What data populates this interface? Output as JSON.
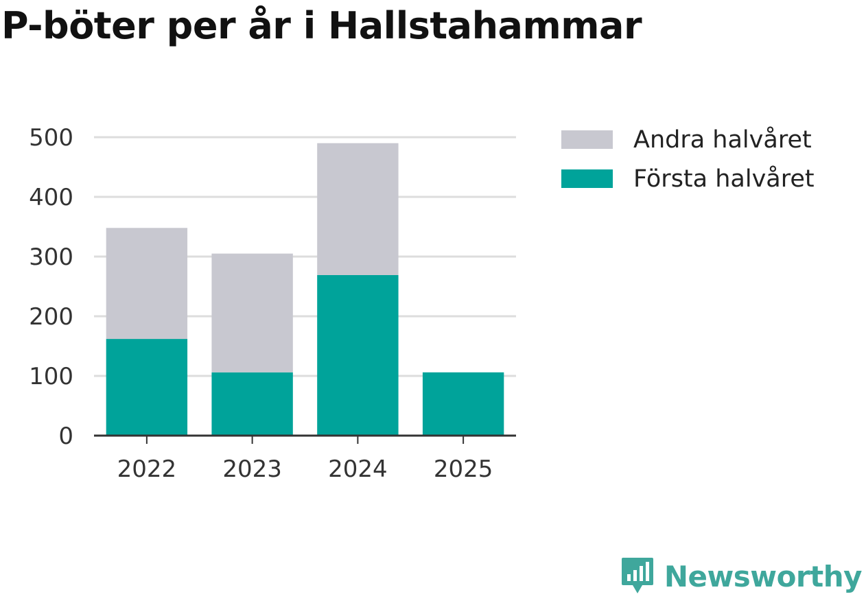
{
  "title": "P-böter per år i Hallstahammar",
  "brand": "Newsworthy",
  "chart_data": {
    "type": "bar",
    "stacked": true,
    "title": "P-böter per år i Hallstahammar",
    "xlabel": "",
    "ylabel": "",
    "ylim": [
      0,
      500
    ],
    "yticks": [
      0,
      100,
      200,
      300,
      400,
      500
    ],
    "categories": [
      "2022",
      "2023",
      "2024",
      "2025"
    ],
    "series": [
      {
        "name": "Första halvåret",
        "color": "#00a39a",
        "values": [
          162,
          106,
          269,
          106
        ]
      },
      {
        "name": "Andra halvåret",
        "color": "#c8c8d0",
        "values": [
          186,
          199,
          221,
          0
        ]
      }
    ],
    "legend": {
      "position": "right",
      "order": [
        "Andra halvåret",
        "Första halvåret"
      ]
    },
    "grid": true
  }
}
